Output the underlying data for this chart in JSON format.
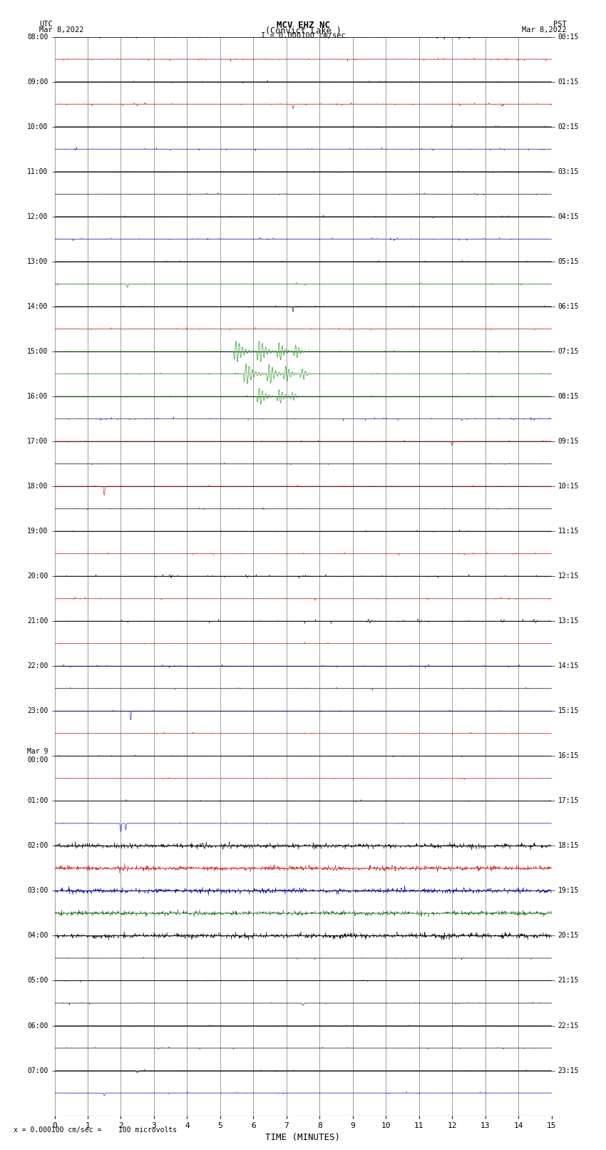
{
  "title_line1": "MCV EHZ NC",
  "title_line2": "(Convict Lake )",
  "title_line3": "I = 0.000100 cm/sec",
  "left_label_top": "UTC",
  "left_label_date": "Mar 8,2022",
  "right_label_top": "PST",
  "right_label_date": "Mar 8,2022",
  "bottom_note": "= 0.000100 cm/sec =    100 microvolts",
  "xlabel": "TIME (MINUTES)",
  "x_min": 0,
  "x_max": 15,
  "n_rows": 48,
  "background_color": "#ffffff",
  "grid_color_major": "#333333",
  "grid_color_minor": "#999999"
}
